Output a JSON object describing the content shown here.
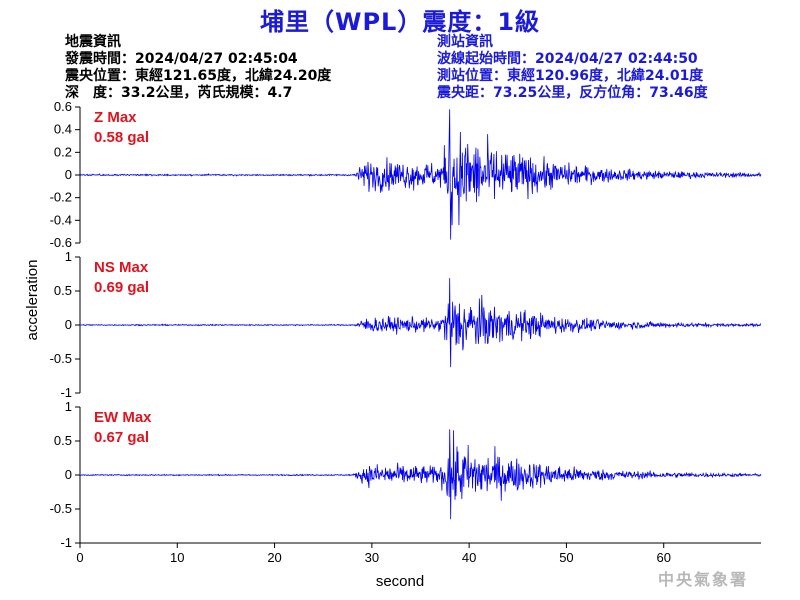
{
  "title": "埔里（WPL）震度：1級",
  "quake_info": {
    "heading": "地震資訊",
    "origin_time": "發震時間：2024/04/27 02:45:04",
    "epicenter": "震央位置：東經121.65度，北緯24.20度",
    "depth_magnitude": "深　度：33.2公里，芮氏規模：4.7"
  },
  "station_info": {
    "heading": "測站資訊",
    "record_start": "波線起始時間：2024/04/27 02:44:50",
    "station_location": "測站位置：東經120.96度，北緯24.01度",
    "distance_azimuth": "震央距：73.25公里，反方位角：73.46度"
  },
  "agency": "中央氣象署",
  "colors": {
    "title": "#1a1ad8",
    "trace": "#0000ee",
    "max_label": "#e0141e"
  },
  "chart_data": [
    {
      "type": "line",
      "name": "Z",
      "max_label": "Z Max",
      "max_value": "0.58 gal",
      "ylim": [
        -0.6,
        0.6
      ],
      "yticks": [
        0.6,
        0.4,
        0.2,
        0,
        -0.2,
        -0.4,
        -0.6
      ],
      "ytick_labels": [
        "0.6",
        "0.4",
        "0.2",
        "0",
        "-0.2",
        "-0.4",
        "-0.6"
      ],
      "xlim": [
        0,
        70
      ],
      "envelope": {
        "noise": 0.006,
        "p_onset": 28,
        "p_amp": 0.12,
        "s_onset": 37,
        "peak_time": 38,
        "peak_amp": 0.58,
        "peak_min": -0.57,
        "decay": 0.15,
        "coda": 0.03
      }
    },
    {
      "type": "line",
      "name": "NS",
      "max_label": "NS Max",
      "max_value": "0.69 gal",
      "ylim": [
        -1,
        1
      ],
      "yticks": [
        1,
        0.5,
        0,
        -0.5,
        -1
      ],
      "ytick_labels": [
        "1",
        "0.5",
        "0",
        "-0.5",
        "-1"
      ],
      "xlim": [
        0,
        70
      ],
      "envelope": {
        "noise": 0.008,
        "p_onset": 28,
        "p_amp": 0.1,
        "s_onset": 37,
        "peak_time": 38,
        "peak_amp": 0.69,
        "peak_min": -0.62,
        "decay": 0.13,
        "coda": 0.03
      }
    },
    {
      "type": "line",
      "name": "EW",
      "max_label": "EW Max",
      "max_value": "0.67 gal",
      "ylim": [
        -1,
        1
      ],
      "yticks": [
        1,
        0.5,
        0,
        -0.5,
        -1
      ],
      "ytick_labels": [
        "1",
        "0.5",
        "0",
        "-0.5",
        "-1"
      ],
      "xlim": [
        0,
        70
      ],
      "envelope": {
        "noise": 0.008,
        "p_onset": 28,
        "p_amp": 0.15,
        "s_onset": 37,
        "peak_time": 38,
        "peak_amp": 0.67,
        "peak_min": -0.65,
        "decay": 0.13,
        "coda": 0.03
      }
    }
  ],
  "x_axis": {
    "ticks": [
      0,
      10,
      20,
      30,
      40,
      50,
      60
    ],
    "tick_labels": [
      "0",
      "10",
      "20",
      "30",
      "40",
      "50",
      "60"
    ],
    "label": "second"
  },
  "y_axis_label": "acceleration"
}
